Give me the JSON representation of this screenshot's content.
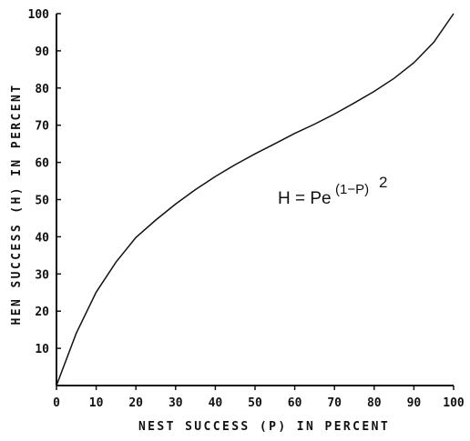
{
  "chart_data": {
    "type": "line",
    "title": "",
    "xlabel": "NEST SUCCESS (P) IN PERCENT",
    "ylabel": "HEN SUCCESS (H) IN PERCENT",
    "xlim": [
      0,
      100
    ],
    "ylim": [
      0,
      100
    ],
    "xticks": [
      "0",
      "10",
      "20",
      "30",
      "40",
      "50",
      "60",
      "70",
      "80",
      "90",
      "100"
    ],
    "yticks": [
      "10",
      "20",
      "30",
      "40",
      "50",
      "60",
      "70",
      "80",
      "90",
      "100"
    ],
    "grid": false,
    "annotation": {
      "prefix": "H = Pe",
      "exponent": "(1−P)",
      "power": "2"
    },
    "series": [
      {
        "x": [
          0,
          5,
          10,
          15,
          20,
          25,
          30,
          35,
          40,
          45,
          50,
          55,
          60,
          65,
          70,
          75,
          80,
          85,
          90,
          95,
          100
        ],
        "y": [
          0,
          14.1,
          25.1,
          33.2,
          39.8,
          44.5,
          48.8,
          52.7,
          56.2,
          59.4,
          62.3,
          65.0,
          67.8,
          70.3,
          73.0,
          76.0,
          79.1,
          82.6,
          86.8,
          92.3,
          100.0
        ]
      }
    ]
  }
}
